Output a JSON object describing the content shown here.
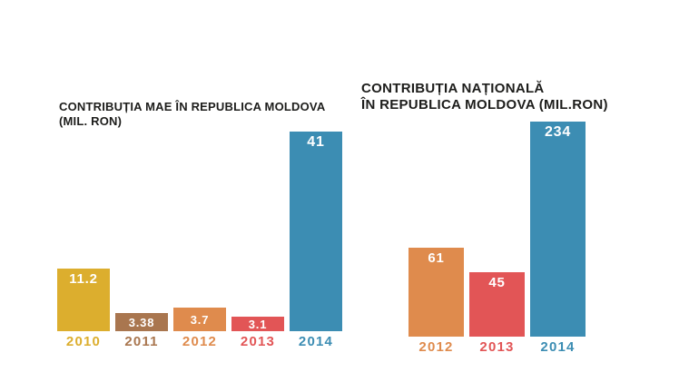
{
  "page": {
    "background_color": "#ffffff",
    "title_color": "#1d1d1b",
    "value_label_color": "#ffffff"
  },
  "chart_data": [
    {
      "type": "bar",
      "title": "CONTRIBUȚIA MAE ÎN REPUBLICA MOLDOVA (MIL. RON)",
      "title_lines": [
        "CONTRIBUȚIA MAE ÎN REPUBLICA MOLDOVA",
        "(MIL. RON)"
      ],
      "unit": "MIL. RON",
      "categories": [
        "2010",
        "2011",
        "2012",
        "2013",
        "2014"
      ],
      "values": [
        11.2,
        3.38,
        3.7,
        3.1,
        41
      ],
      "value_labels": [
        "11.2",
        "3.38",
        "3.7",
        "3.1",
        "41"
      ],
      "bar_colors": [
        "#dcae2e",
        "#a9764f",
        "#df8b4d",
        "#e25556",
        "#3c8db3"
      ],
      "ylim": [
        0,
        41
      ],
      "grid": false,
      "legend_position": "none",
      "value_label_position": "inside-top",
      "category_label_position": "below-bar, colored same as bar"
    },
    {
      "type": "bar",
      "title": "CONTRIBUȚIA NAȚIONALĂ ÎN REPUBLICA MOLDOVA (MIL.RON)",
      "title_lines": [
        "CONTRIBUȚIA NAȚIONALĂ",
        "ÎN REPUBLICA MOLDOVA (MIL.RON)"
      ],
      "unit": "MIL.RON",
      "categories": [
        "2012",
        "2013",
        "2014"
      ],
      "values": [
        61,
        45,
        234
      ],
      "value_labels": [
        "61",
        "45",
        "234"
      ],
      "bar_colors": [
        "#df8b4d",
        "#e25556",
        "#3c8db3"
      ],
      "ylim": [
        0,
        234
      ],
      "grid": false,
      "legend_position": "none",
      "value_label_position": "inside-top",
      "category_label_position": "below-bar, colored same as bar"
    }
  ]
}
